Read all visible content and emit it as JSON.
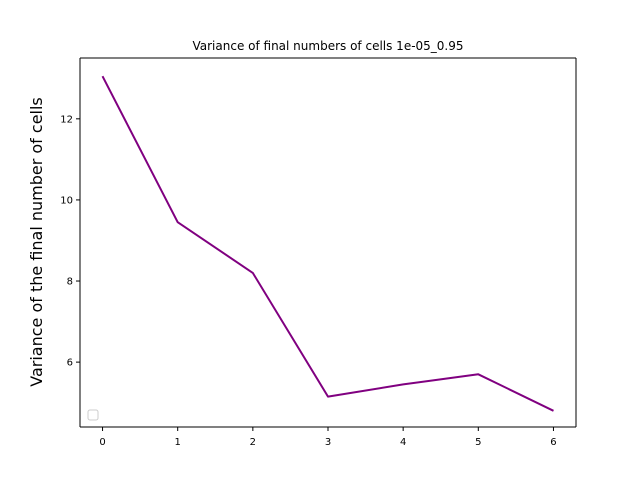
{
  "chart_data": {
    "type": "line",
    "title": "Variance of final numbers of cells 1e-05_0.95",
    "xlabel": "",
    "ylabel": "Variance of the final number of cells",
    "x": [
      0,
      1,
      2,
      3,
      4,
      5,
      6
    ],
    "series": [
      {
        "values": [
          13.05,
          9.45,
          8.2,
          5.15,
          5.45,
          5.7,
          4.8
        ],
        "color": "#800080"
      }
    ],
    "xlim": [
      -0.3,
      6.3
    ],
    "ylim": [
      4.4,
      13.5
    ],
    "x_ticks": [
      "0",
      "1",
      "2",
      "3",
      "4",
      "5",
      "6"
    ],
    "y_ticks": [
      "6",
      "8",
      "10",
      "12"
    ],
    "grid": false,
    "legend": {
      "position": "lower-left",
      "entries": []
    }
  }
}
